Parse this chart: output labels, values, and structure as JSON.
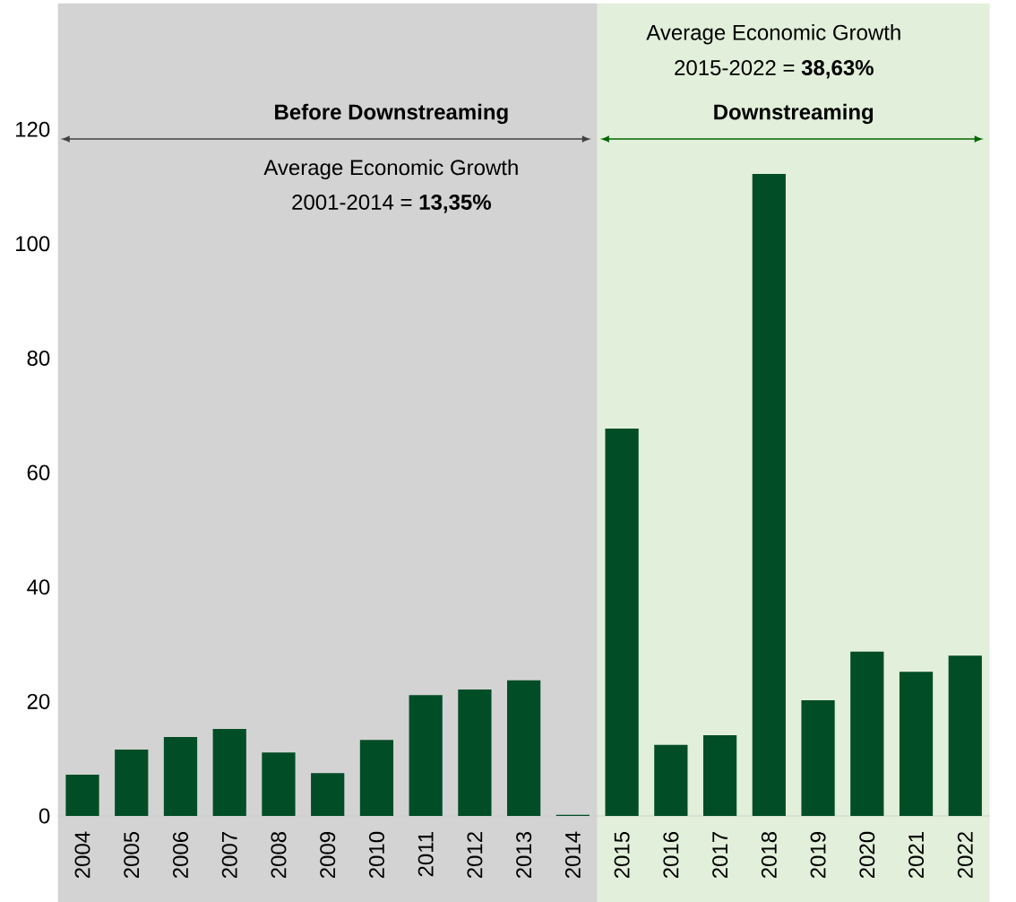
{
  "chart_data": {
    "type": "bar",
    "categories": [
      "2004",
      "2005",
      "2006",
      "2007",
      "2008",
      "2009",
      "2010",
      "2011",
      "2012",
      "2013",
      "2014",
      "2015",
      "2016",
      "2017",
      "2018",
      "2019",
      "2020",
      "2021",
      "2022"
    ],
    "values": [
      7.2,
      11.6,
      13.8,
      15.2,
      11.1,
      7.5,
      13.3,
      21.1,
      22.1,
      23.7,
      0.2,
      67.7,
      12.4,
      14.1,
      112.2,
      20.2,
      28.7,
      25.2,
      28.0
    ],
    "color": "#004d26",
    "ylim": [
      0,
      142
    ],
    "yticks": [
      0,
      20,
      40,
      60,
      80,
      100,
      120
    ],
    "bands": [
      {
        "axis": "x",
        "from": "2004",
        "to": "2014",
        "label": "Before Downstreaming",
        "color": "#d3d3d3"
      },
      {
        "axis": "x",
        "from": "2015",
        "to": "2022",
        "label": "Downstreaming",
        "color": "#e2efda"
      }
    ],
    "annotations": [
      "Average Economic Growth",
      "2001-2014 = **13,35%**",
      "Average Economic Growth",
      "2015-2022 = **38,63%**"
    ]
  }
}
